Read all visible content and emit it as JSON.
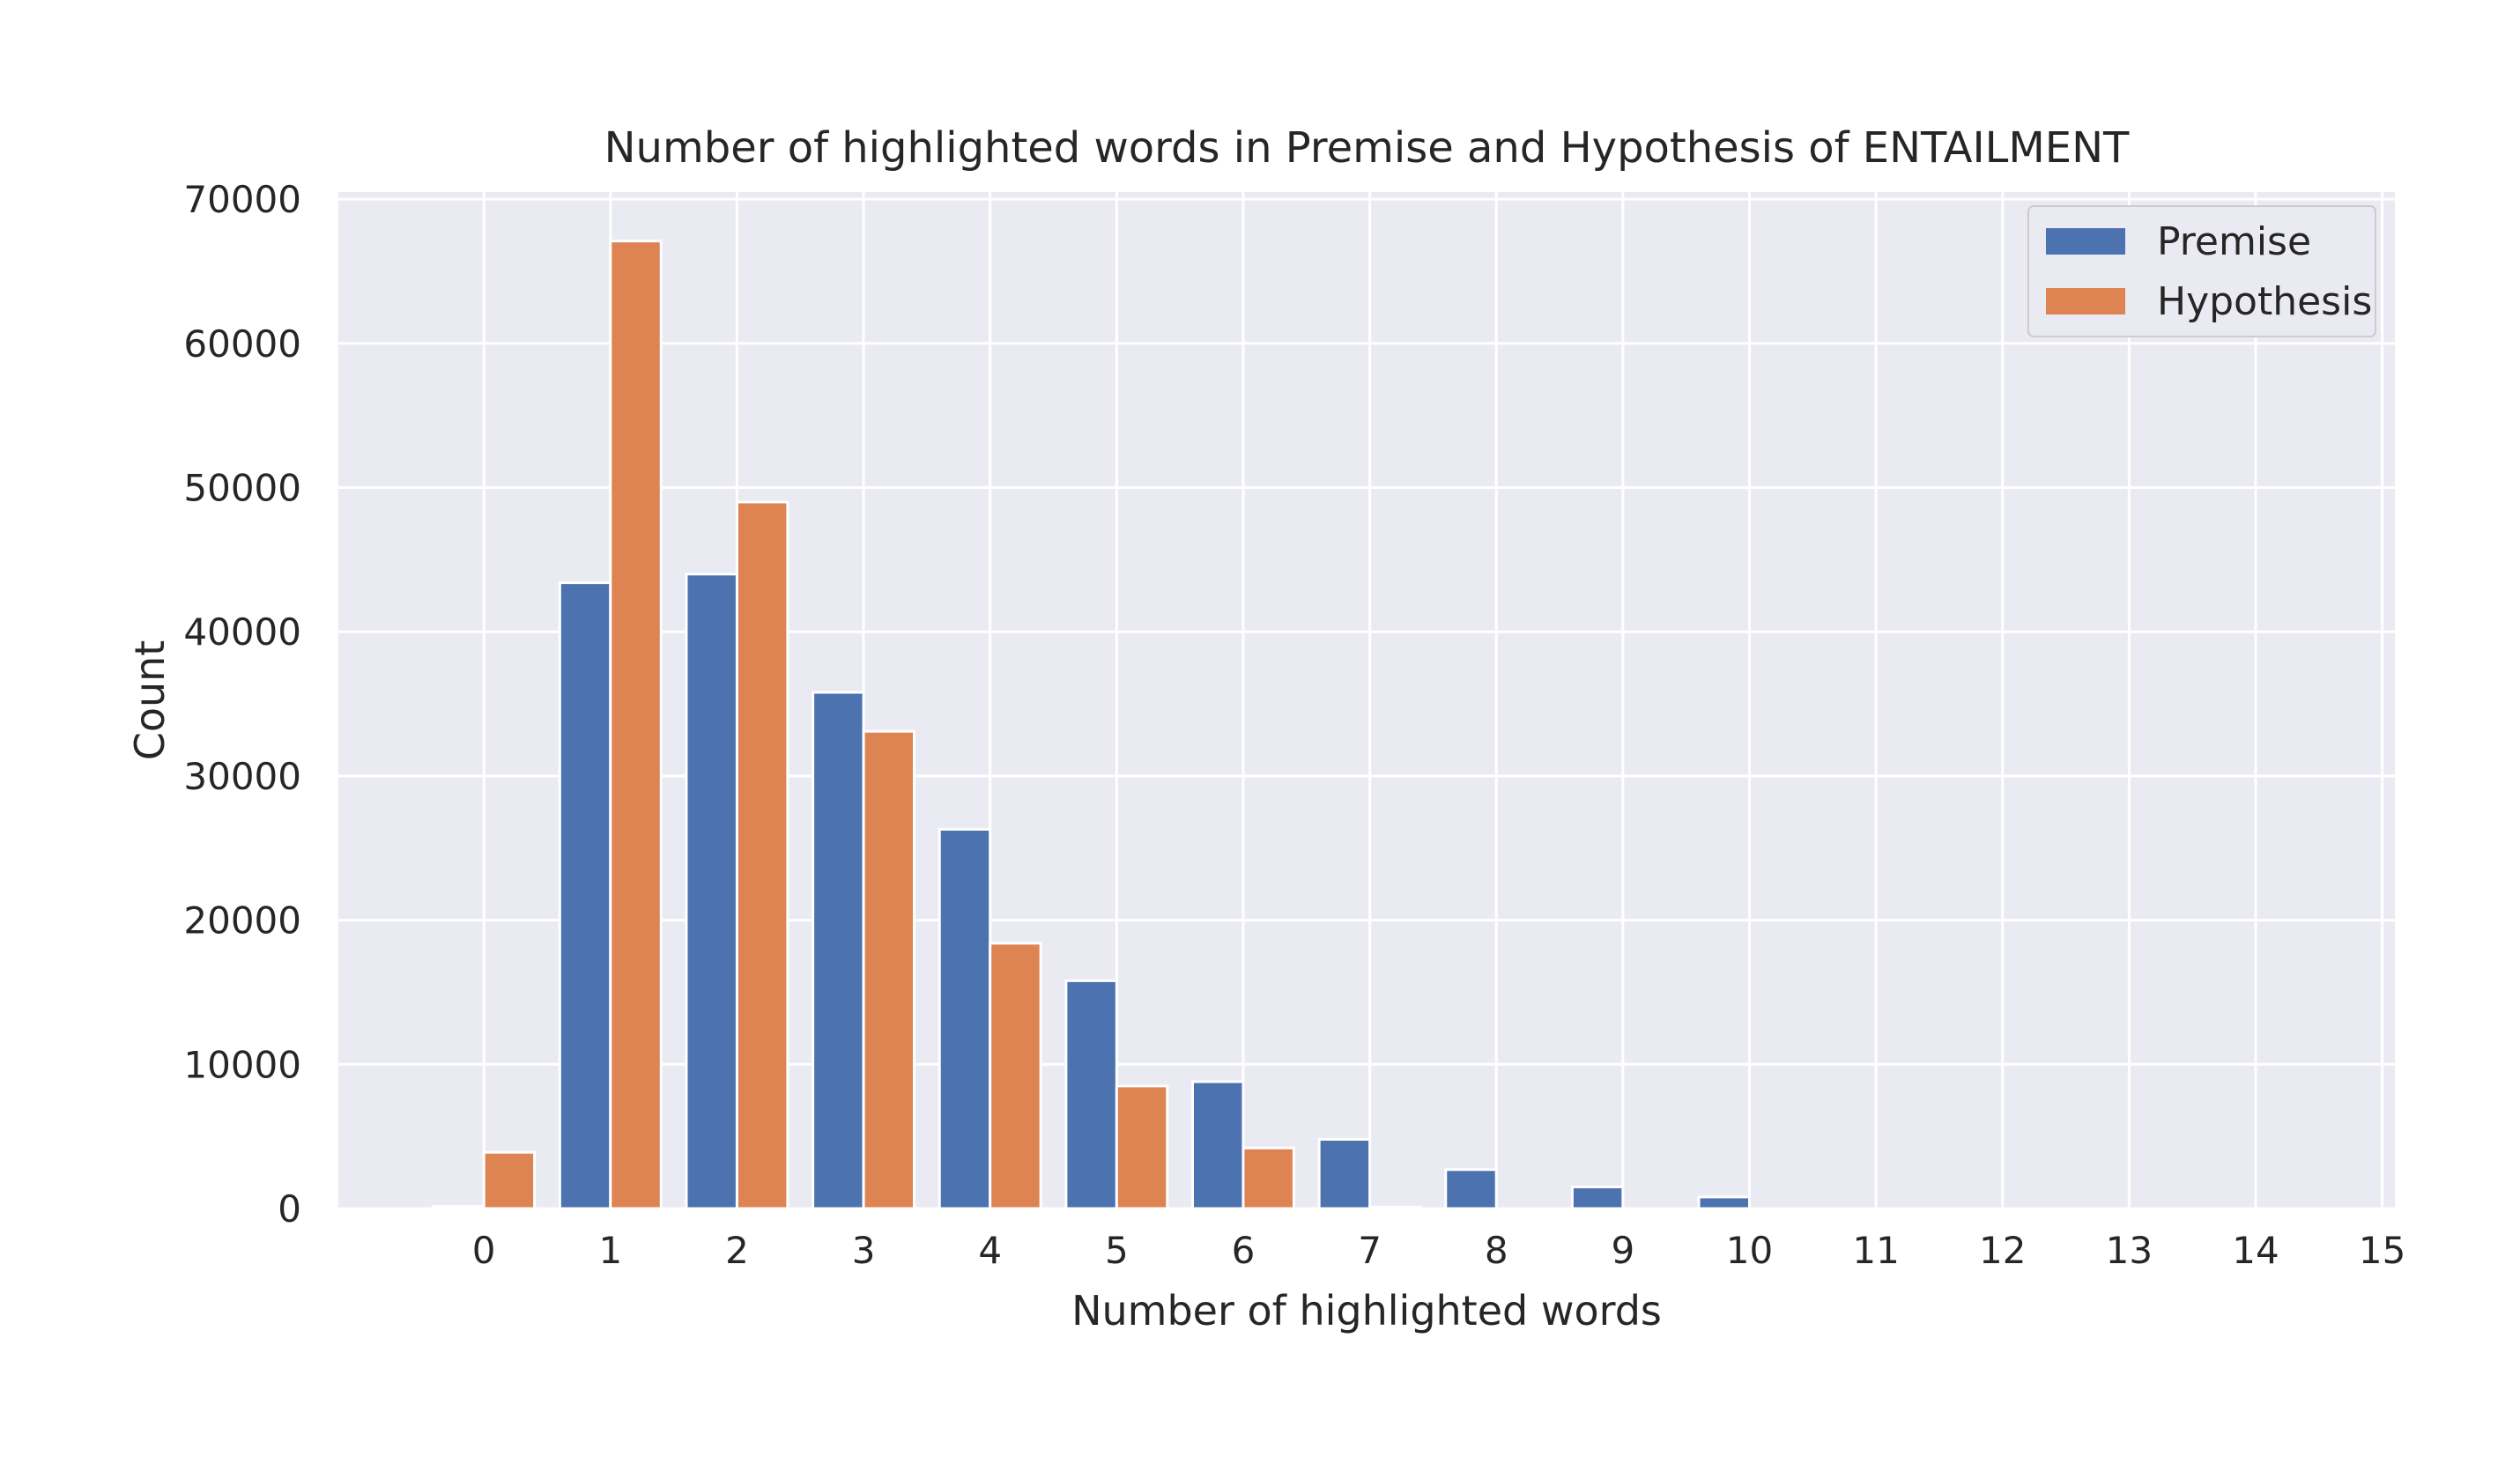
{
  "chart_data": {
    "type": "bar",
    "title": "Number of highlighted words in Premise and Hypothesis of ENTAILMENT",
    "xlabel": "Number of highlighted words",
    "ylabel": "Count",
    "x": [
      0,
      1,
      2,
      3,
      4,
      5,
      6,
      7,
      8,
      9,
      10,
      11,
      12,
      13,
      14,
      15
    ],
    "x_tick_labels": [
      "0",
      "1",
      "2",
      "3",
      "4",
      "5",
      "6",
      "7",
      "8",
      "9",
      "10",
      "11",
      "12",
      "13",
      "14",
      "15"
    ],
    "xlim": [
      -1.15,
      15.1
    ],
    "ylim": [
      0,
      70500
    ],
    "y_ticks": [
      0,
      10000,
      20000,
      30000,
      40000,
      50000,
      60000,
      70000
    ],
    "y_tick_labels": [
      "0",
      "10000",
      "20000",
      "30000",
      "40000",
      "50000",
      "60000",
      "70000"
    ],
    "grid": true,
    "legend_position": "top-right",
    "series": [
      {
        "name": "Premise",
        "color": "#4c72b0",
        "values": [
          150,
          43400,
          44000,
          35800,
          26300,
          15800,
          8800,
          4800,
          2700,
          1500,
          800,
          0,
          0,
          0,
          0,
          0
        ]
      },
      {
        "name": "Hypothesis",
        "color": "#dd8452",
        "values": [
          3900,
          67100,
          49000,
          33100,
          18400,
          8500,
          4200,
          100,
          0,
          0,
          0,
          0,
          0,
          0,
          0,
          0
        ]
      }
    ],
    "plot_background": "#eaeaf2",
    "grid_color": "#ffffff"
  }
}
